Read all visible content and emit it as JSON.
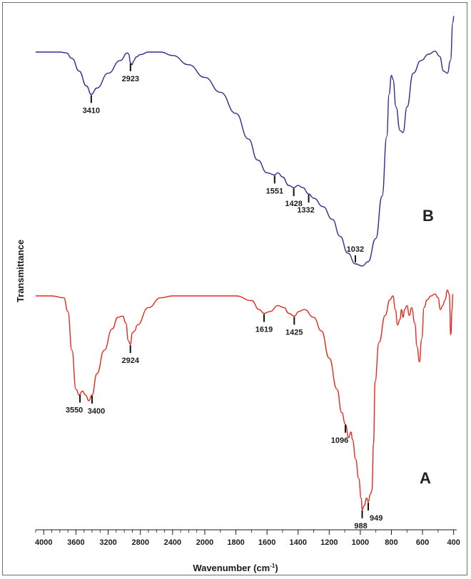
{
  "chart_data": {
    "type": "line",
    "xlabel": "Wavenumber (cm",
    "xlabel_sup": "-1",
    "xlabel_close": ")",
    "ylabel": "Transmittance",
    "xlim": [
      4100,
      380
    ],
    "x_reversed": true,
    "xticks": [
      4000,
      3600,
      3200,
      2800,
      2400,
      2000,
      1800,
      1600,
      1400,
      1200,
      1000,
      800,
      600,
      400
    ],
    "tick_labels": [
      "4000",
      "3600",
      "3200",
      "2800",
      "2400",
      "2000",
      "1800",
      "1600",
      "1400",
      "1200",
      "1000",
      "800",
      "600",
      "400"
    ],
    "grid": false,
    "legend": "none",
    "series": [
      {
        "name": "B",
        "color": "#2e2e8c",
        "points": [
          [
            4100,
            0.0
          ],
          [
            3800,
            0.0
          ],
          [
            3720,
            -0.02
          ],
          [
            3650,
            -0.15
          ],
          [
            3560,
            -0.45
          ],
          [
            3470,
            -0.8
          ],
          [
            3410,
            -1.0
          ],
          [
            3340,
            -0.85
          ],
          [
            3200,
            -0.5
          ],
          [
            3050,
            -0.2
          ],
          [
            2960,
            -0.02
          ],
          [
            2945,
            -0.05
          ],
          [
            2923,
            -0.25
          ],
          [
            2905,
            -0.3
          ],
          [
            2880,
            -0.2
          ],
          [
            2855,
            -0.12
          ],
          [
            2800,
            -0.06
          ],
          [
            2700,
            0.0
          ],
          [
            2550,
            0.0
          ],
          [
            2400,
            -0.08
          ],
          [
            2200,
            -0.3
          ],
          [
            2000,
            -0.6
          ],
          [
            1900,
            -0.95
          ],
          [
            1800,
            -1.45
          ],
          [
            1720,
            -2.05
          ],
          [
            1660,
            -2.55
          ],
          [
            1600,
            -2.85
          ],
          [
            1551,
            -2.9
          ],
          [
            1530,
            -2.85
          ],
          [
            1500,
            -2.95
          ],
          [
            1460,
            -3.15
          ],
          [
            1428,
            -3.2
          ],
          [
            1400,
            -3.15
          ],
          [
            1370,
            -3.2
          ],
          [
            1332,
            -3.35
          ],
          [
            1300,
            -3.45
          ],
          [
            1240,
            -3.65
          ],
          [
            1180,
            -3.95
          ],
          [
            1130,
            -4.35
          ],
          [
            1080,
            -4.75
          ],
          [
            1032,
            -5.0
          ],
          [
            988,
            -5.05
          ],
          [
            950,
            -4.95
          ],
          [
            900,
            -4.4
          ],
          [
            860,
            -3.4
          ],
          [
            830,
            -2.0
          ],
          [
            815,
            -1.0
          ],
          [
            800,
            -0.55
          ],
          [
            790,
            -0.65
          ],
          [
            770,
            -1.3
          ],
          [
            745,
            -1.85
          ],
          [
            725,
            -1.9
          ],
          [
            700,
            -1.3
          ],
          [
            660,
            -0.5
          ],
          [
            610,
            -0.2
          ],
          [
            560,
            -0.05
          ],
          [
            520,
            0.02
          ],
          [
            490,
            -0.1
          ],
          [
            465,
            -0.45
          ],
          [
            440,
            -0.5
          ],
          [
            420,
            -0.2
          ],
          [
            405,
            0.7
          ],
          [
            398,
            0.85
          ]
        ]
      },
      {
        "name": "A",
        "color": "#e8281e",
        "points": [
          [
            4100,
            0.0
          ],
          [
            3900,
            0.0
          ],
          [
            3750,
            -0.05
          ],
          [
            3700,
            -0.4
          ],
          [
            3650,
            -1.4
          ],
          [
            3600,
            -2.4
          ],
          [
            3560,
            -2.55
          ],
          [
            3520,
            -2.45
          ],
          [
            3480,
            -2.55
          ],
          [
            3440,
            -2.7
          ],
          [
            3400,
            -2.55
          ],
          [
            3340,
            -2.0
          ],
          [
            3250,
            -1.4
          ],
          [
            3150,
            -0.85
          ],
          [
            3080,
            -0.55
          ],
          [
            3020,
            -0.52
          ],
          [
            2980,
            -0.7
          ],
          [
            2950,
            -1.15
          ],
          [
            2924,
            -1.25
          ],
          [
            2900,
            -0.95
          ],
          [
            2870,
            -0.9
          ],
          [
            2840,
            -0.75
          ],
          [
            2700,
            -0.3
          ],
          [
            2550,
            -0.05
          ],
          [
            2400,
            0.0
          ],
          [
            2000,
            0.0
          ],
          [
            1800,
            0.0
          ],
          [
            1700,
            -0.12
          ],
          [
            1650,
            -0.35
          ],
          [
            1619,
            -0.45
          ],
          [
            1580,
            -0.4
          ],
          [
            1530,
            -0.25
          ],
          [
            1490,
            -0.3
          ],
          [
            1460,
            -0.45
          ],
          [
            1425,
            -0.52
          ],
          [
            1395,
            -0.4
          ],
          [
            1360,
            -0.35
          ],
          [
            1300,
            -0.55
          ],
          [
            1250,
            -0.9
          ],
          [
            1200,
            -1.6
          ],
          [
            1150,
            -2.4
          ],
          [
            1120,
            -3.0
          ],
          [
            1096,
            -3.3
          ],
          [
            1075,
            -3.65
          ],
          [
            1060,
            -3.5
          ],
          [
            1050,
            -3.7
          ],
          [
            1030,
            -4.2
          ],
          [
            1010,
            -4.7
          ],
          [
            995,
            -5.2
          ],
          [
            988,
            -5.5
          ],
          [
            975,
            -5.4
          ],
          [
            960,
            -5.2
          ],
          [
            949,
            -5.3
          ],
          [
            935,
            -5.1
          ],
          [
            925,
            -5.0
          ],
          [
            915,
            -3.8
          ],
          [
            905,
            -2.2
          ],
          [
            880,
            -1.2
          ],
          [
            840,
            -0.5
          ],
          [
            810,
            -0.1
          ],
          [
            790,
            0.0
          ],
          [
            775,
            -0.35
          ],
          [
            760,
            -0.75
          ],
          [
            745,
            -0.6
          ],
          [
            735,
            -0.35
          ],
          [
            725,
            -0.55
          ],
          [
            715,
            -0.35
          ],
          [
            700,
            -0.25
          ],
          [
            685,
            -0.5
          ],
          [
            670,
            -0.3
          ],
          [
            650,
            -0.7
          ],
          [
            635,
            -1.3
          ],
          [
            620,
            -1.7
          ],
          [
            605,
            -1.1
          ],
          [
            590,
            -0.3
          ],
          [
            570,
            -0.1
          ],
          [
            545,
            0.0
          ],
          [
            520,
            0.05
          ],
          [
            500,
            -0.05
          ],
          [
            485,
            -0.35
          ],
          [
            470,
            -0.25
          ],
          [
            455,
            -0.1
          ],
          [
            440,
            0.15
          ],
          [
            428,
            0.05
          ],
          [
            418,
            -1.0
          ],
          [
            410,
            -0.35
          ],
          [
            405,
            0.05
          ]
        ]
      }
    ],
    "peak_labels": [
      {
        "series": "B",
        "wavenumber": 3410,
        "text": "3410",
        "position": "below"
      },
      {
        "series": "B",
        "wavenumber": 2923,
        "text": "2923",
        "position": "below"
      },
      {
        "series": "B",
        "wavenumber": 1551,
        "text": "1551",
        "position": "below"
      },
      {
        "series": "B",
        "wavenumber": 1428,
        "text": "1428",
        "position": "below"
      },
      {
        "series": "B",
        "wavenumber": 1332,
        "text": "1332",
        "position": "below"
      },
      {
        "series": "B",
        "wavenumber": 1032,
        "text": "1032",
        "position": "above"
      },
      {
        "series": "A",
        "wavenumber": 3550,
        "text": "3550",
        "position": "below"
      },
      {
        "series": "A",
        "wavenumber": 3400,
        "text": "3400",
        "position": "below"
      },
      {
        "series": "A",
        "wavenumber": 2924,
        "text": "2924",
        "position": "below"
      },
      {
        "series": "A",
        "wavenumber": 1619,
        "text": "1619",
        "position": "below"
      },
      {
        "series": "A",
        "wavenumber": 1425,
        "text": "1425",
        "position": "below"
      },
      {
        "series": "A",
        "wavenumber": 1096,
        "text": "1096",
        "position": "below"
      },
      {
        "series": "A",
        "wavenumber": 988,
        "text": "988",
        "position": "below"
      },
      {
        "series": "A",
        "wavenumber": 949,
        "text": "949",
        "position": "below-right"
      }
    ],
    "spectrum_labels": [
      "B",
      "A"
    ]
  }
}
